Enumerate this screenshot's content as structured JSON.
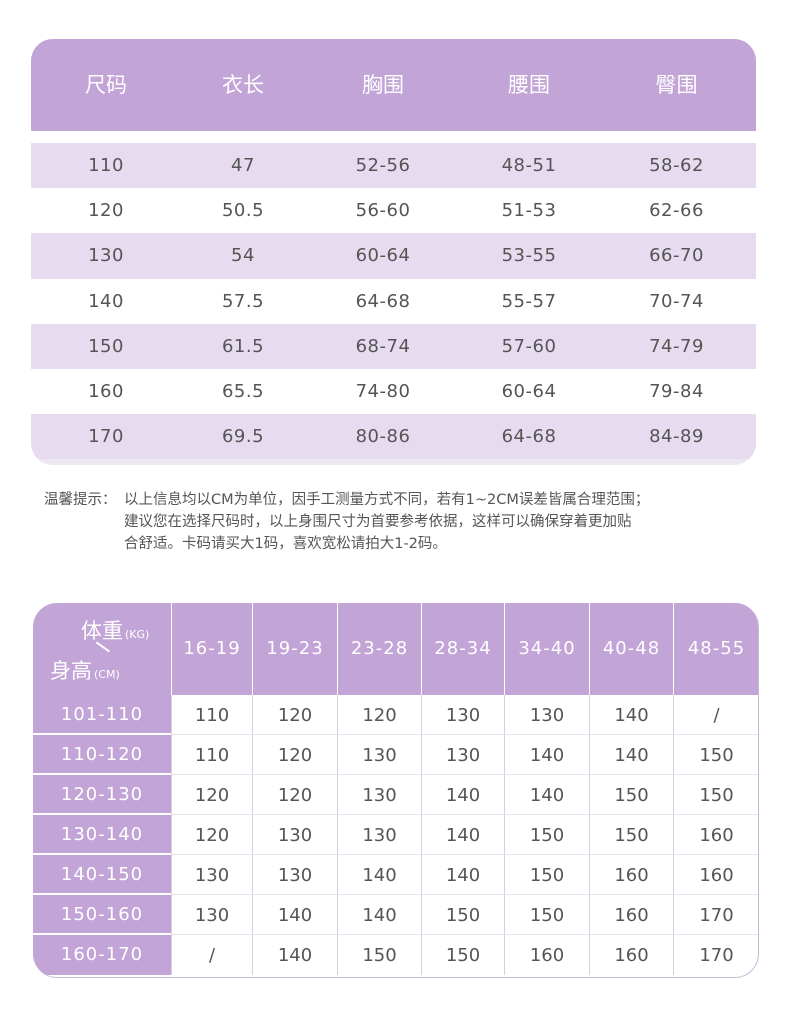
{
  "size_table": {
    "headers": [
      "尺码",
      "衣长",
      "胸围",
      "腰围",
      "臀围"
    ],
    "rows": [
      [
        "110",
        "47",
        "52-56",
        "48-51",
        "58-62"
      ],
      [
        "120",
        "50.5",
        "56-60",
        "51-53",
        "62-66"
      ],
      [
        "130",
        "54",
        "60-64",
        "53-55",
        "66-70"
      ],
      [
        "140",
        "57.5",
        "64-68",
        "55-57",
        "70-74"
      ],
      [
        "150",
        "61.5",
        "68-74",
        "57-60",
        "74-79"
      ],
      [
        "160",
        "65.5",
        "74-80",
        "60-64",
        "79-84"
      ],
      [
        "170",
        "69.5",
        "80-86",
        "64-68",
        "84-89"
      ]
    ]
  },
  "tip": {
    "lead": "温馨提示：",
    "lines": [
      "以上信息均以CM为单位，因手工测量方式不同，若有1~2CM误差皆属合理范围；",
      "建议您在选择尺码时，以上身围尺寸为首要参考依据，这样可以确保穿着更加贴",
      "合舒适。卡码请买大1码，喜欢宽松请拍大1-2码。"
    ]
  },
  "weight_table": {
    "corner": {
      "weight_label": "体重",
      "weight_unit": "(KG)",
      "height_label": "身高",
      "height_unit": "(CM)"
    },
    "weight_ranges": [
      "16-19",
      "19-23",
      "23-28",
      "28-34",
      "34-40",
      "40-48",
      "48-55"
    ],
    "rows": [
      {
        "height": "101-110",
        "values": [
          "110",
          "120",
          "120",
          "130",
          "130",
          "140",
          "/"
        ]
      },
      {
        "height": "110-120",
        "values": [
          "110",
          "120",
          "130",
          "130",
          "140",
          "140",
          "150"
        ]
      },
      {
        "height": "120-130",
        "values": [
          "120",
          "120",
          "130",
          "140",
          "140",
          "150",
          "150"
        ]
      },
      {
        "height": "130-140",
        "values": [
          "120",
          "130",
          "130",
          "140",
          "150",
          "150",
          "160"
        ]
      },
      {
        "height": "140-150",
        "values": [
          "130",
          "130",
          "140",
          "140",
          "150",
          "160",
          "160"
        ]
      },
      {
        "height": "150-160",
        "values": [
          "130",
          "140",
          "140",
          "150",
          "150",
          "160",
          "170"
        ]
      },
      {
        "height": "160-170",
        "values": [
          "/",
          "140",
          "150",
          "150",
          "160",
          "160",
          "170"
        ]
      }
    ]
  },
  "colors": {
    "accent": "#c2a4d7",
    "row_tint": "#e6dbef",
    "text": "#555555"
  }
}
